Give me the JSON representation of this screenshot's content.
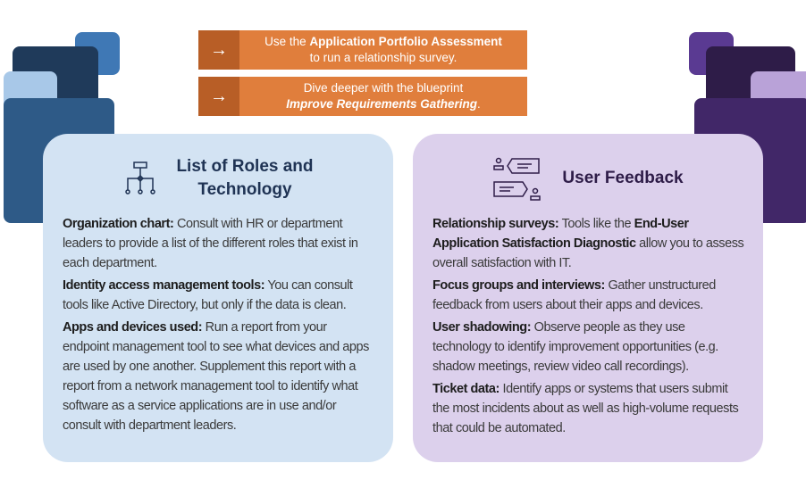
{
  "banners": [
    {
      "icon": "arrow-right-icon",
      "pre": "Use the ",
      "bold": "Application Portfolio Assessment",
      "post": "to run a relationship survey."
    },
    {
      "icon": "arrow-right-icon",
      "pre": "Dive deeper with the blueprint",
      "bold": "Improve Requirements Gathering",
      "post": "."
    }
  ],
  "left": {
    "title_1": "List of Roles and",
    "title_2": "Technology",
    "icon": "org-chart-icon",
    "items": [
      {
        "label": "Organization chart:",
        "text": " Consult with HR or department leaders to provide a list of the different roles that exist in each department."
      },
      {
        "label": "Identity access management tools:",
        "text": " You can consult tools like Active Directory, but only if the data is clean."
      },
      {
        "label": "Apps and devices used:",
        "text": " Run a report from your endpoint management tool to see what devices and apps are used by one another. Supplement this report with a report from a network management tool to identify what software as a service applications are in use and/or consult with department leaders."
      }
    ]
  },
  "right": {
    "title": "User Feedback",
    "icon": "conversation-icon",
    "items": [
      {
        "label": "Relationship surveys:",
        "text": " Tools like the ",
        "bold2": "End-User Application Satisfaction Diagnostic",
        "text2": " allow you to assess overall satisfaction with IT."
      },
      {
        "label": "Focus groups and interviews:",
        "text": " Gather unstructured feedback from users about their apps and devices."
      },
      {
        "label": "User shadowing:",
        "text": " Observe people as they use technology to identify improvement opportunities (e.g. shadow meetings, review video call recordings)."
      },
      {
        "label": "Ticket data:",
        "text": " Identify apps or systems that users submit the most incidents about as well as high-volume requests that could be automated."
      }
    ]
  },
  "colors": {
    "orange": "#e07e3c",
    "orange_dark": "#b85e26",
    "left_card": "#d3e3f3",
    "right_card": "#dcd0ec",
    "navy_text": "#1f3354",
    "purple_text": "#2e1c48"
  }
}
